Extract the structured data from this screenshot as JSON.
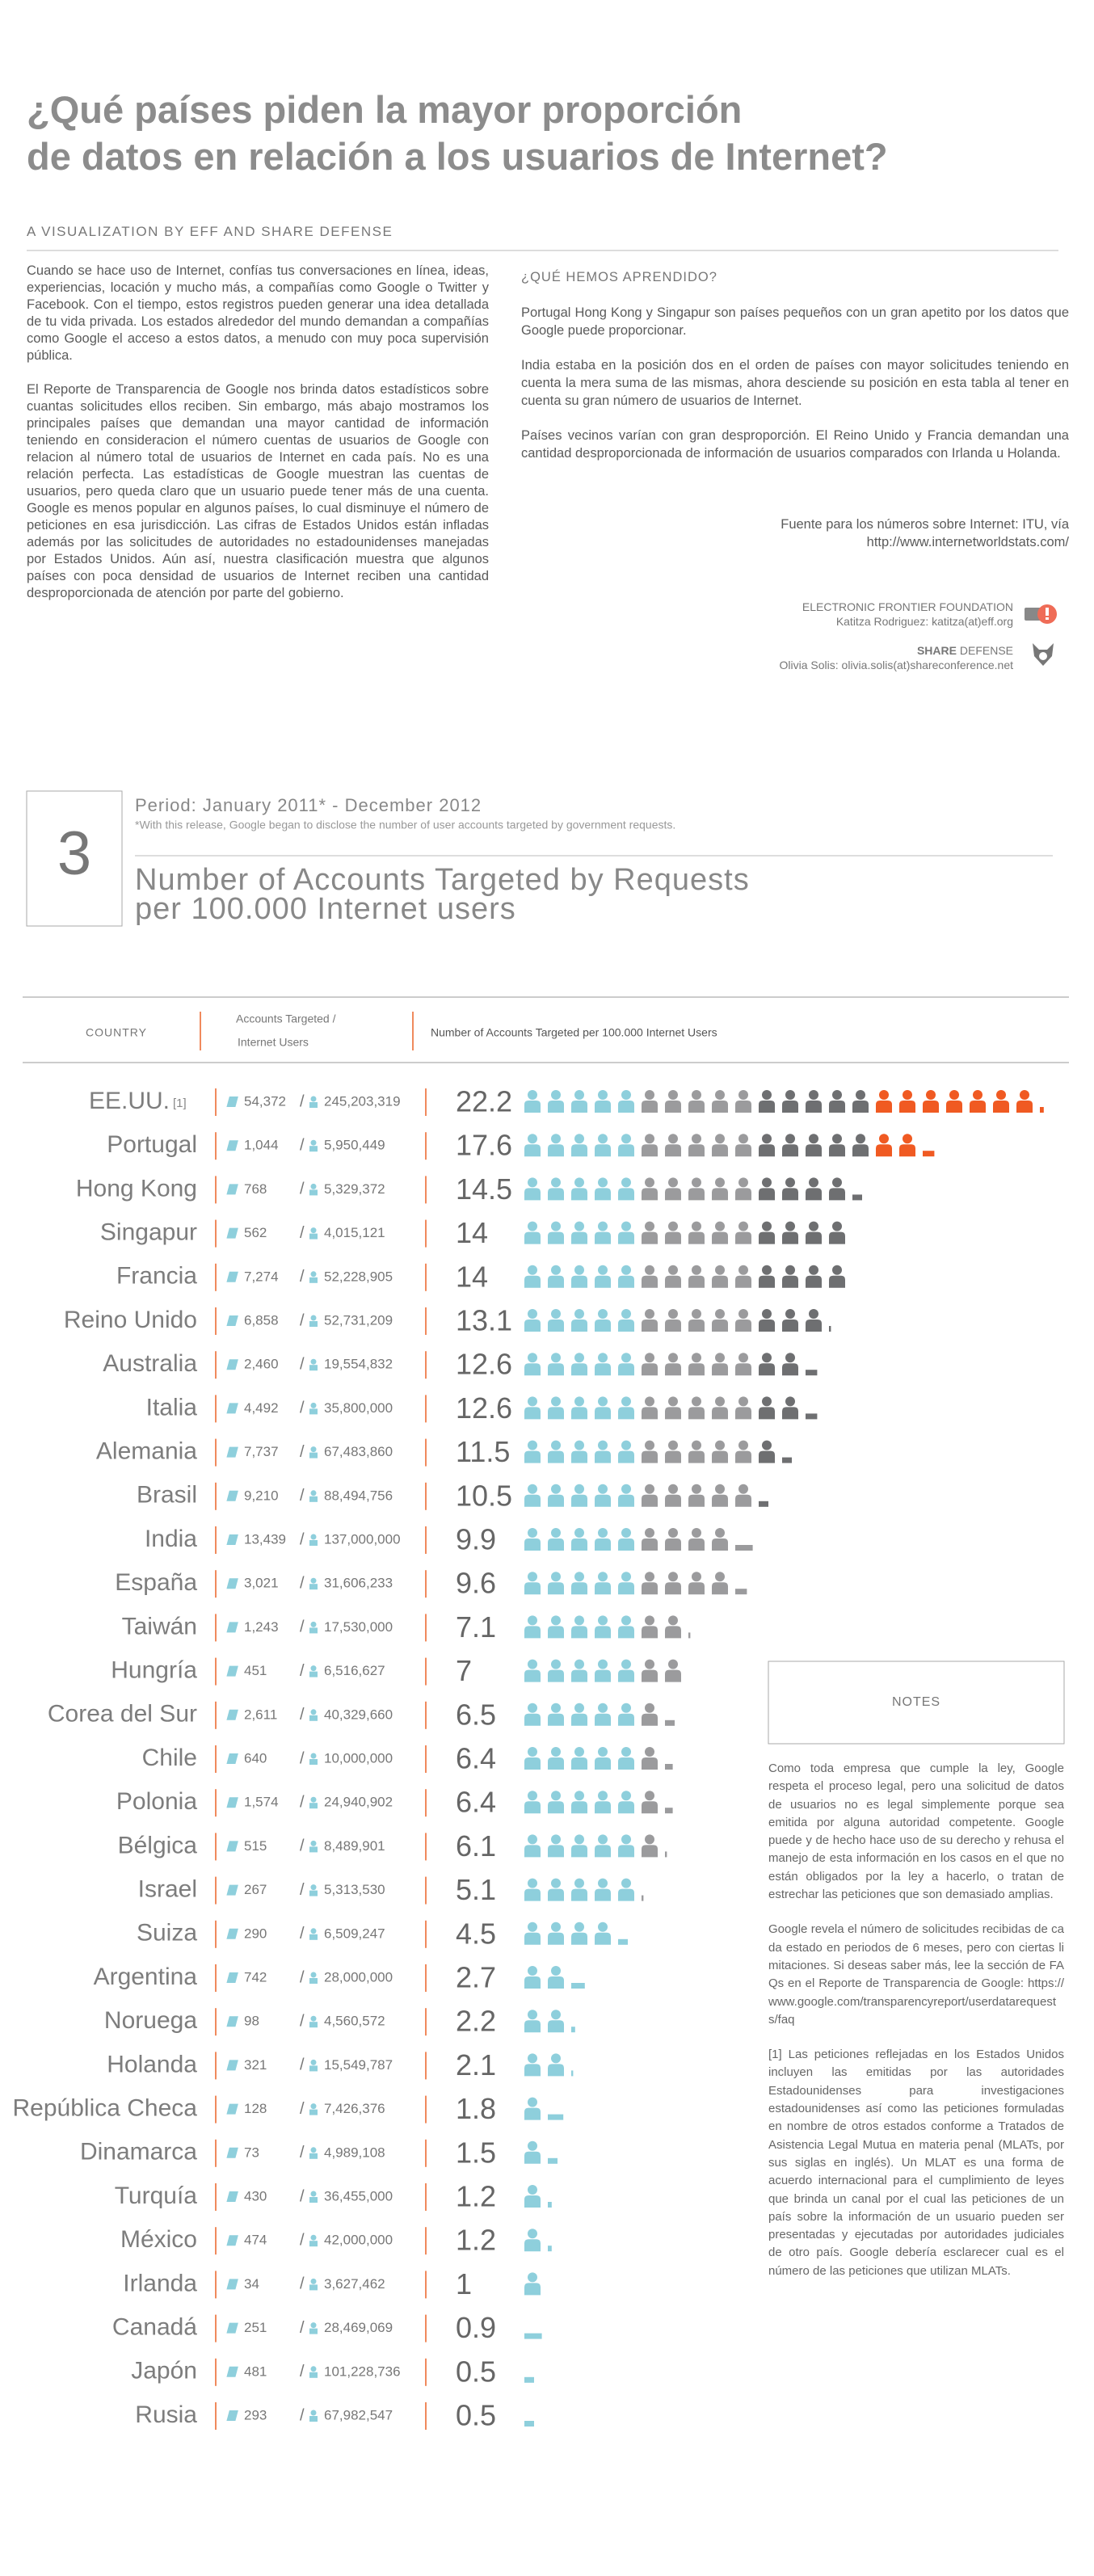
{
  "header": {
    "title_line1": "¿Qué países piden la mayor proporción",
    "title_line2": "de datos en relación a los usuarios de Internet?",
    "subtitle": "A VISUALIZATION BY EFF AND SHARE DEFENSE"
  },
  "intro": {
    "paragraphs": [
      "Cuando se hace uso de Internet, confías tus conversaciones en línea, ideas, experiencias, locación y mucho más, a compañías como Google o Twitter y Facebook. Con el tiempo, estos registros pueden generar una idea detallada de tu vida privada. Los estados alrededor del mundo demandan a compañías como Google el acceso a estos datos, a menudo con muy poca supervisión pública.",
      "El Reporte de Transparencia de Google nos brinda datos estadísticos sobre cuantas solicitudes ellos reciben. Sin embargo, más abajo mostramos los principales países que demandan una mayor cantidad de información teniendo en consideracion el número cuentas de usuarios de Google con relacion al número total de usuarios de Internet en cada país. No es una relación perfecta. Las estadísticas de Google muestran las cuentas de usuarios, pero queda claro que un usuario puede tener más de una cuenta. Google es menos popular en algunos países, lo cual disminuye el número de peticiones en esa jurisdicción. Las cifras de Estados Unidos están infladas además por las solicitudes de autoridades no estadounidenses manejadas por Estados Unidos. Aún así, nuestra clasificación muestra que algunos países con poca densidad de usuarios de Internet reciben una cantidad desproporcionada de atención por parte del gobierno."
    ]
  },
  "learned": {
    "heading": "¿QUÉ HEMOS APRENDIDO?",
    "paragraphs": [
      "Portugal Hong Kong y Singapur son países pequeños con un gran apetito por los datos que Google puede proporcionar.",
      "India estaba en la posición dos en el orden de países con mayor solicitudes teniendo en cuenta la mera suma de las mismas, ahora desciende su posición en esta tabla al tener en cuenta su gran número de usuarios de Internet.",
      "Países vecinos varían con gran desproporción. El Reino Unido y Francia demandan una cantidad desproporcionada de información de usuarios comparados con Irlanda u Holanda."
    ],
    "source": [
      "Fuente para los números sobre Internet: ITU, vía",
      "http://www.internetworldstats.com/"
    ]
  },
  "credits": {
    "eff_org": "ELECTRONIC FRONTIER FOUNDATION",
    "eff_person": "Katitza Rodriguez: katitza(at)eff.org",
    "share_org_bold": "SHARE",
    "share_org": "DEFENSE",
    "share_person": "Olivia Solis: olivia.solis(at)shareconference.net"
  },
  "chart": {
    "rank": "3",
    "period": "Period: January 2011* - December 2012",
    "period_note": "*With this release, Google began to disclose the number of user accounts targeted by government requests.",
    "title_line1": "Number of Accounts Targeted by Requests",
    "title_line2": "per 100.000 Internet users",
    "col_country": "COUNTRY",
    "col_accounts": "Accounts Targeted  /",
    "col_users": "Internet Users",
    "col_rate": "Number of Accounts Targeted per 100.000 Internet Users",
    "separator": "/",
    "rows": [
      {
        "country": "EE.UU.",
        "footnote": "[1]",
        "accounts": "54,372",
        "users": "245,203,319",
        "value": 22.2
      },
      {
        "country": "Portugal",
        "accounts": "1,044",
        "users": "5,950,449",
        "value": 17.6
      },
      {
        "country": "Hong Kong",
        "accounts": "768",
        "users": "5,329,372",
        "value": 14.5
      },
      {
        "country": "Singapur",
        "accounts": "562",
        "users": "4,015,121",
        "value": 14
      },
      {
        "country": "Francia",
        "accounts": "7,274",
        "users": "52,228,905",
        "value": 14
      },
      {
        "country": "Reino Unido",
        "accounts": "6,858",
        "users": "52,731,209",
        "value": 13.1
      },
      {
        "country": "Australia",
        "accounts": "2,460",
        "users": "19,554,832",
        "value": 12.6
      },
      {
        "country": "Italia",
        "accounts": "4,492",
        "users": "35,800,000",
        "value": 12.6
      },
      {
        "country": "Alemania",
        "accounts": "7,737",
        "users": "67,483,860",
        "value": 11.5
      },
      {
        "country": "Brasil",
        "accounts": "9,210",
        "users": "88,494,756",
        "value": 10.5
      },
      {
        "country": "India",
        "accounts": "13,439",
        "users": "137,000,000",
        "value": 9.9
      },
      {
        "country": "España",
        "accounts": "3,021",
        "users": "31,606,233",
        "value": 9.6
      },
      {
        "country": "Taiwán",
        "accounts": "1,243",
        "users": "17,530,000",
        "value": 7.1
      },
      {
        "country": "Hungría",
        "accounts": "451",
        "users": "6,516,627",
        "value": 7
      },
      {
        "country": "Corea del Sur",
        "accounts": "2,611",
        "users": "40,329,660",
        "value": 6.5
      },
      {
        "country": "Chile",
        "accounts": "640",
        "users": "10,000,000",
        "value": 6.4
      },
      {
        "country": "Polonia",
        "accounts": "1,574",
        "users": "24,940,902",
        "value": 6.4
      },
      {
        "country": "Bélgica",
        "accounts": "515",
        "users": "8,489,901",
        "value": 6.1
      },
      {
        "country": "Israel",
        "accounts": "267",
        "users": "5,313,530",
        "value": 5.1
      },
      {
        "country": "Suiza",
        "accounts": "290",
        "users": "6,509,247",
        "value": 4.5
      },
      {
        "country": "Argentina",
        "accounts": "742",
        "users": "28,000,000",
        "value": 2.7
      },
      {
        "country": "Noruega",
        "accounts": "98",
        "users": "4,560,572",
        "value": 2.2
      },
      {
        "country": "Holanda",
        "accounts": "321",
        "users": "15,549,787",
        "value": 2.1
      },
      {
        "country": "República Checa",
        "accounts": "128",
        "users": "7,426,376",
        "value": 1.8
      },
      {
        "country": "Dinamarca",
        "accounts": "73",
        "users": "4,989,108",
        "value": 1.5
      },
      {
        "country": "Turquía",
        "accounts": "430",
        "users": "36,455,000",
        "value": 1.2
      },
      {
        "country": "México",
        "accounts": "474",
        "users": "42,000,000",
        "value": 1.2
      },
      {
        "country": "Irlanda",
        "accounts": "34",
        "users": "3,627,462",
        "value": 1
      },
      {
        "country": "Canadá",
        "accounts": "251",
        "users": "28,469,069",
        "value": 0.9
      },
      {
        "country": "Japón",
        "accounts": "481",
        "users": "101,228,736",
        "value": 0.5
      },
      {
        "country": "Rusia",
        "accounts": "293",
        "users": "67,982,547",
        "value": 0.5
      }
    ]
  },
  "notes": {
    "heading": "NOTES",
    "paragraphs": [
      "Como toda empresa que cumple la ley, Google respeta el proceso legal, pero una solicitud de datos de usuarios no es legal simplemente porque sea emitida por alguna autoridad competente. Google puede y de hecho hace uso de su derecho y rehusa el manejo de esta información en los casos en el que no están obligados por la ley a hacerlo, o tratan de estrechar las peticiones que son demasiado amplias.",
      "Google revela el número de solicitudes recibidas de cada estado en periodos de 6 meses, pero con ciertas limitaciones. Si deseas saber más, lee la sección de FAQs en el Reporte de Transparencia de Google: https://www.google.com/transparencyreport/userdatarequests/faq",
      "[1]  Las peticiones reflejadas en los Estados Unidos incluyen las emitidas por las autoridades Estadounidenses para investigaciones estadounidenses así como las peticiones formuladas en nombre de otros estados conforme a Tratados de Asistencia Legal Mutua en materia penal (MLATs, por sus siglas en inglés). Un MLAT es una forma de acuerdo internacional para el cumplimiento de leyes que brinda un canal por el cual las peticiones de un país sobre la información de un usuario pueden ser presentadas y ejecutadas por autoridades judiciales de otro país. Google debería esclarecer cual es el número de las peticiones que utilizan MLATs."
    ]
  }
}
